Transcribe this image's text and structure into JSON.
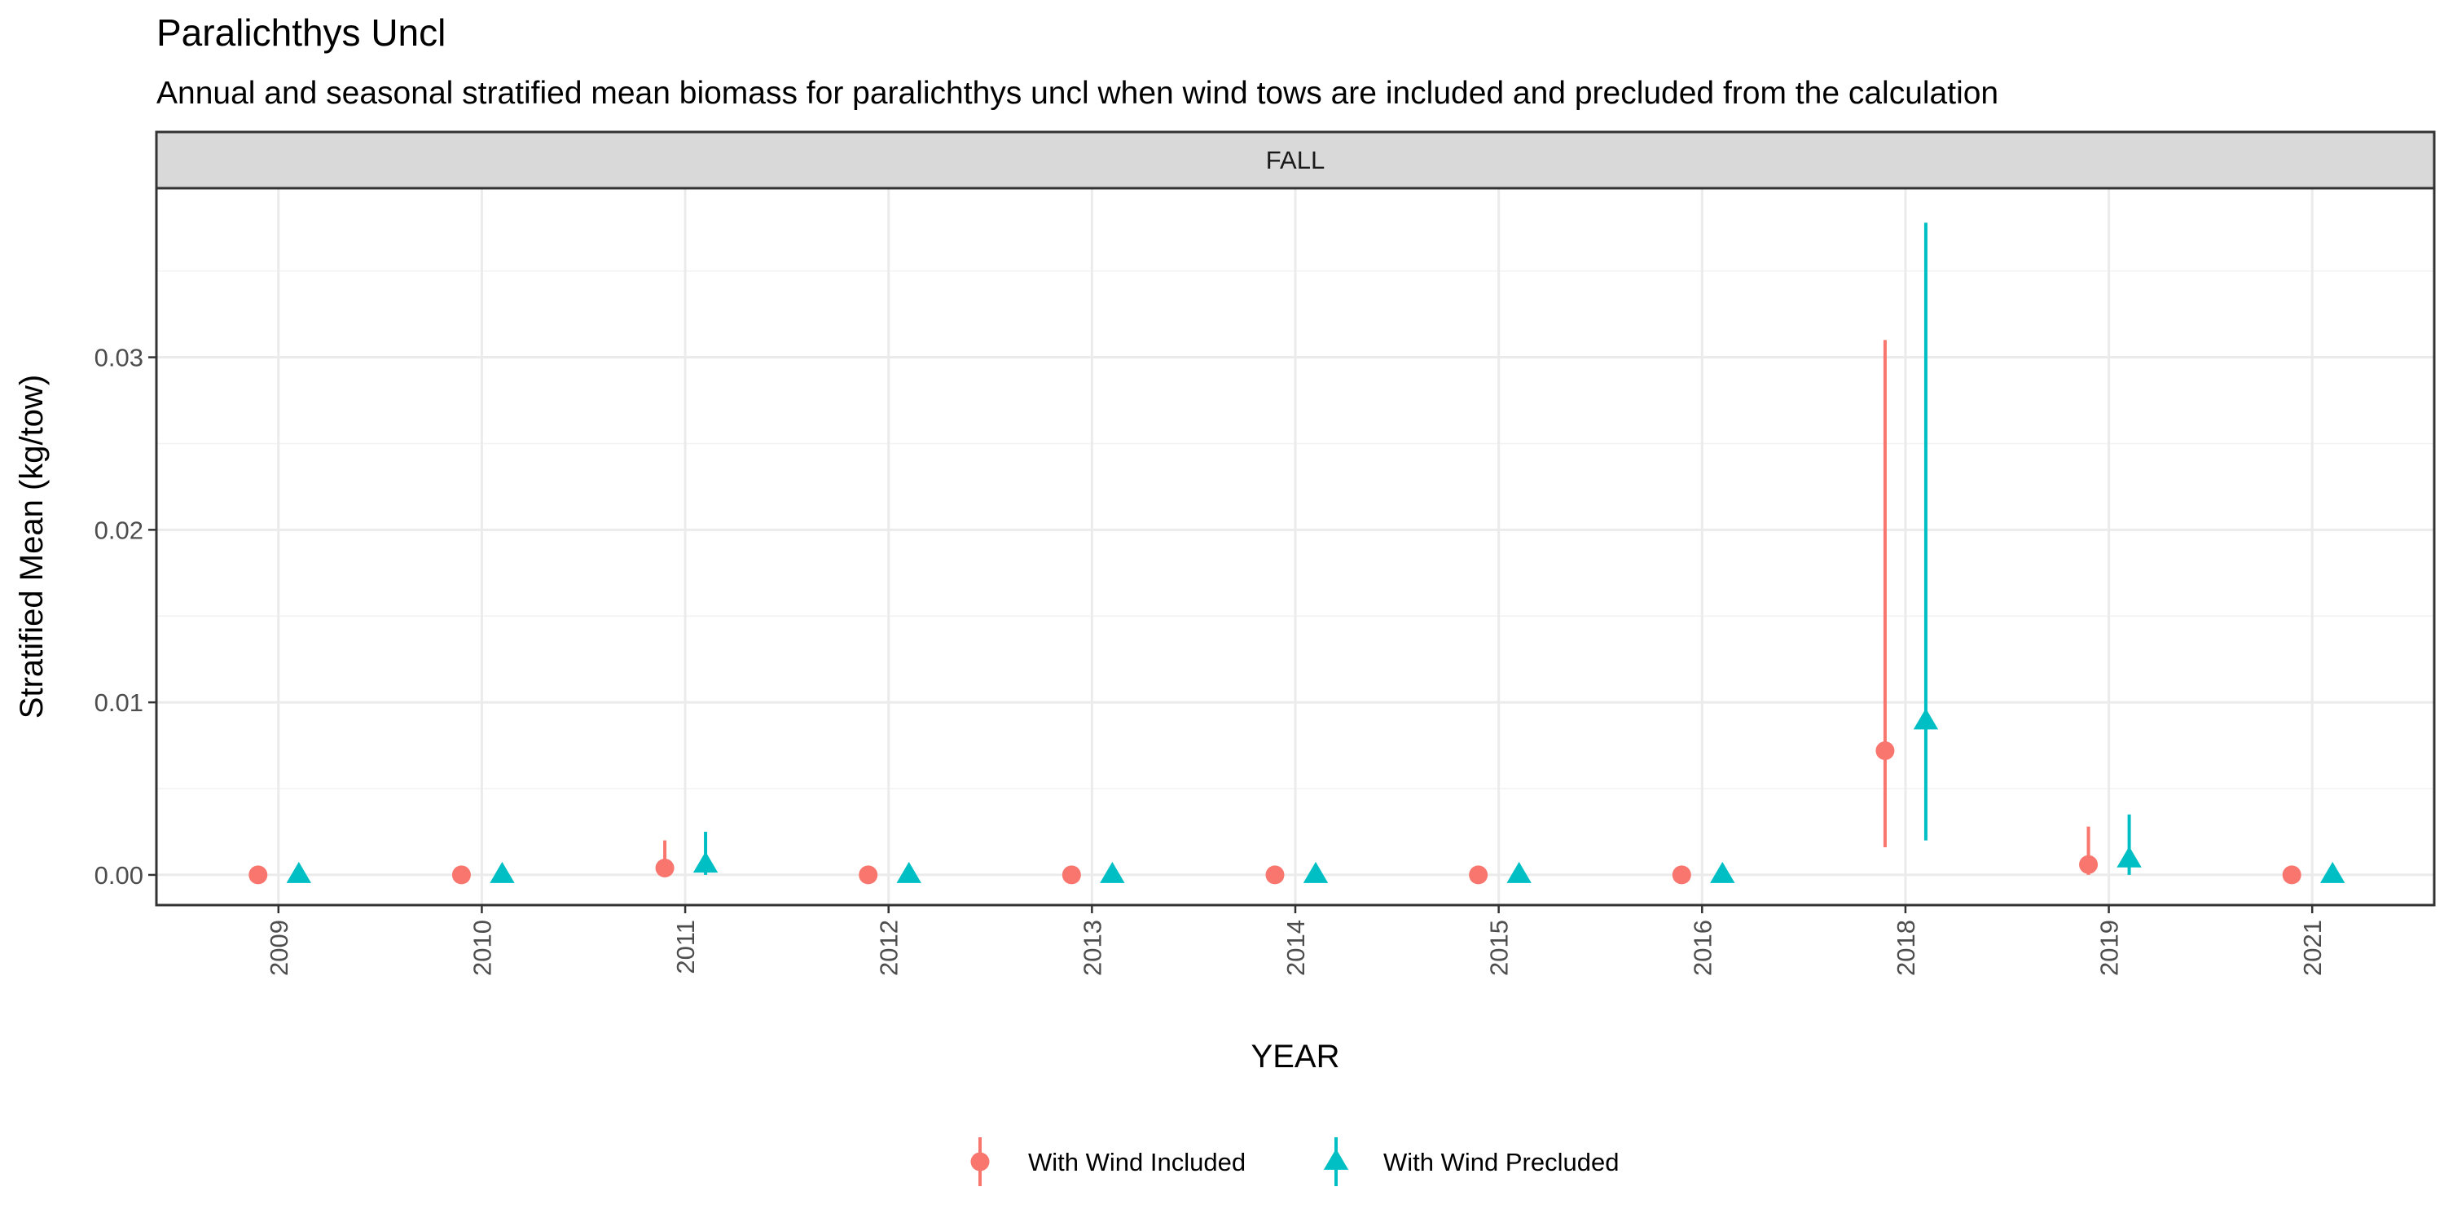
{
  "chart_data": {
    "type": "scatter",
    "title": "Paralichthys Uncl",
    "subtitle": "Annual and seasonal stratified mean biomass for paralichthys uncl when wind tows are included and precluded from the calculation",
    "facet": "FALL",
    "xlabel": "YEAR",
    "ylabel": "Stratified Mean (kg/tow)",
    "categories": [
      "2009",
      "2010",
      "2011",
      "2012",
      "2013",
      "2014",
      "2015",
      "2016",
      "2018",
      "2019",
      "2021"
    ],
    "ylim": [
      -0.00175,
      0.0398
    ],
    "yticks": [
      0.0,
      0.01,
      0.02,
      0.03
    ],
    "ytick_labels": [
      "0.00",
      "0.01",
      "0.02",
      "0.03"
    ],
    "grid": true,
    "legend_position": "bottom",
    "series": [
      {
        "name": "With Wind Included",
        "shape": "circle",
        "color": "#F8766D",
        "values": [
          0.0,
          0.0,
          0.0004,
          0.0,
          0.0,
          0.0,
          0.0,
          0.0,
          0.0072,
          0.0006,
          0.0
        ],
        "lower": [
          0.0,
          0.0,
          0.0,
          0.0,
          0.0,
          0.0,
          0.0,
          0.0,
          0.0016,
          0.0,
          0.0
        ],
        "upper": [
          0.0,
          0.0,
          0.002,
          0.0,
          0.0,
          0.0,
          0.0,
          0.0,
          0.031,
          0.0028,
          0.0
        ]
      },
      {
        "name": "With Wind Precluded",
        "shape": "triangle",
        "color": "#00BFC4",
        "values": [
          0.0,
          0.0,
          0.0006,
          0.0,
          0.0,
          0.0,
          0.0,
          0.0,
          0.0089,
          0.0009,
          0.0
        ],
        "lower": [
          0.0,
          0.0,
          0.0,
          0.0,
          0.0,
          0.0,
          0.0,
          0.0,
          0.002,
          0.0,
          0.0
        ],
        "upper": [
          0.0,
          0.0,
          0.0025,
          0.0,
          0.0,
          0.0,
          0.0,
          0.0,
          0.0378,
          0.0035,
          0.0
        ]
      }
    ]
  }
}
